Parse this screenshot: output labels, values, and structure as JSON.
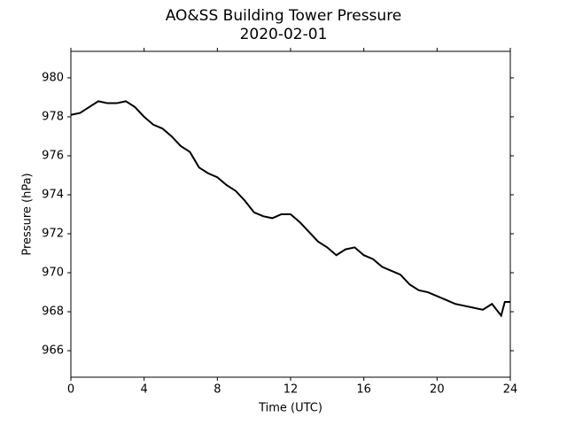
{
  "chart_data": {
    "type": "line",
    "title": "AO&SS Building Tower Pressure",
    "subtitle": "2020-02-01",
    "x_label": "Time (UTC)",
    "y_label": "Pressure (hPa)",
    "x": [
      0,
      0.5,
      1,
      1.5,
      2,
      2.5,
      3,
      3.5,
      4,
      4.5,
      5,
      5.5,
      6,
      6.5,
      7,
      7.5,
      8,
      8.5,
      9,
      9.5,
      10,
      10.5,
      11,
      11.5,
      12,
      12.5,
      13,
      13.5,
      14,
      14.5,
      15,
      15.5,
      16,
      16.5,
      17,
      17.5,
      18,
      18.5,
      19,
      19.5,
      20,
      20.5,
      21,
      21.5,
      22,
      22.5,
      23,
      23.5,
      23.7,
      24
    ],
    "series": [
      {
        "name": "Pressure",
        "color": "#000000",
        "values": [
          978.1,
          978.2,
          978.5,
          978.8,
          978.7,
          978.7,
          978.8,
          978.5,
          978.0,
          977.6,
          977.4,
          977.0,
          976.5,
          976.2,
          975.4,
          975.1,
          974.9,
          974.5,
          974.2,
          973.7,
          973.1,
          972.9,
          972.8,
          973.0,
          973.0,
          972.6,
          972.1,
          971.6,
          971.3,
          970.9,
          971.2,
          971.3,
          970.9,
          970.7,
          970.3,
          970.1,
          969.9,
          969.4,
          969.1,
          969.0,
          968.8,
          968.6,
          968.4,
          968.3,
          968.2,
          968.1,
          968.4,
          967.8,
          968.5,
          968.5
        ]
      }
    ],
    "xlim": [
      0,
      24
    ],
    "xticks": [
      0,
      4,
      8,
      12,
      16,
      20,
      24
    ],
    "ylim": [
      964.64,
      981.36
    ],
    "yticks": [
      966,
      968,
      970,
      972,
      974,
      976,
      978,
      980
    ],
    "grid": false
  }
}
